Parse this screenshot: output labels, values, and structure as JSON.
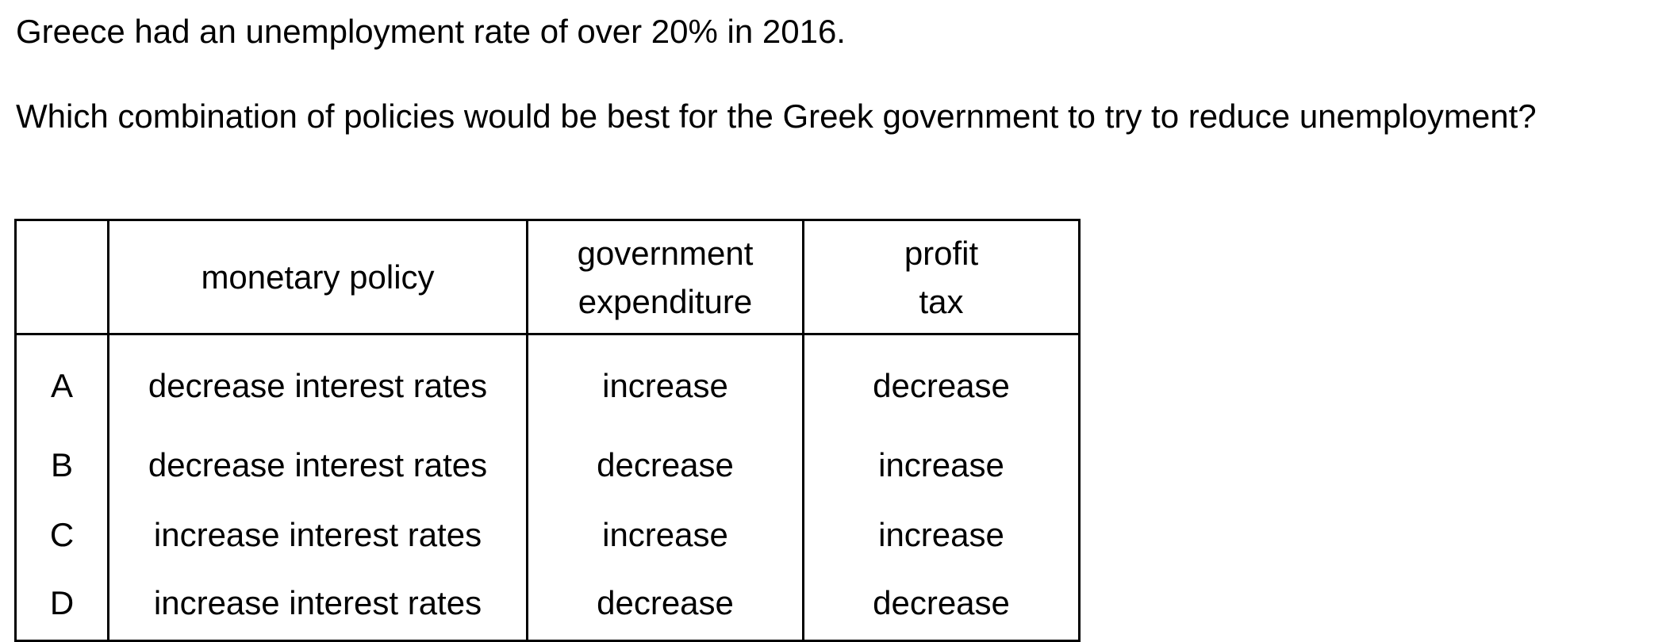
{
  "intro": "Greece had an unemployment rate of over 20% in 2016.",
  "question": "Which combination of policies would be best for the Greek government to try to reduce unemployment?",
  "table": {
    "headers": {
      "key": "",
      "monetary": "monetary policy",
      "gov_line1": "government",
      "gov_line2": "expenditure",
      "tax_line1": "profit",
      "tax_line2": "tax"
    },
    "rows": [
      {
        "key": "A",
        "monetary": "decrease interest rates",
        "gov": "increase",
        "tax": "decrease"
      },
      {
        "key": "B",
        "monetary": "decrease interest rates",
        "gov": "decrease",
        "tax": "increase"
      },
      {
        "key": "C",
        "monetary": "increase interest rates",
        "gov": "increase",
        "tax": "increase"
      },
      {
        "key": "D",
        "monetary": "increase interest rates",
        "gov": "decrease",
        "tax": "decrease"
      }
    ]
  }
}
